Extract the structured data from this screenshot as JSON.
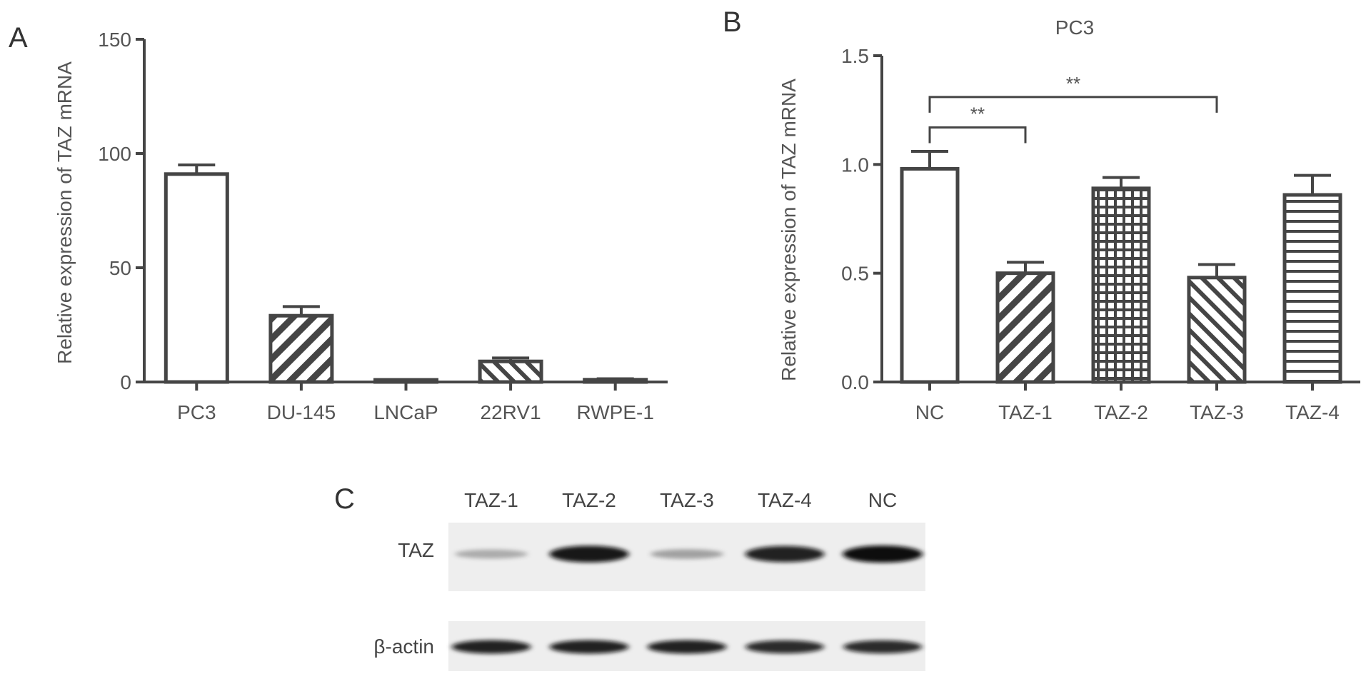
{
  "panels": {
    "a": "A",
    "b": "B",
    "c": "C"
  },
  "chart_data": [
    {
      "type": "bar",
      "panel": "A",
      "title": "",
      "xlabel": "",
      "ylabel": "Relative expression of TAZ mRNA",
      "ylim": [
        0,
        150
      ],
      "yticks": [
        0,
        50,
        100,
        150
      ],
      "ytick_labels": [
        "0",
        "50",
        "100",
        "150"
      ],
      "grid": false,
      "categories": [
        "PC3",
        "DU-145",
        "LNCaP",
        "22RV1",
        "RWPE-1"
      ],
      "values": [
        91,
        29,
        0.5,
        9,
        1
      ],
      "errors": [
        4,
        4,
        0.2,
        1.5,
        0.4
      ],
      "patterns": [
        "none",
        "diag-right",
        "diag-right",
        "diag-left",
        "diag-left"
      ]
    },
    {
      "type": "bar",
      "panel": "B",
      "title": "PC3",
      "xlabel": "",
      "ylabel": "Relative expression of TAZ mRNA",
      "ylim": [
        0,
        1.5
      ],
      "yticks": [
        0,
        0.5,
        1.0,
        1.5
      ],
      "ytick_labels": [
        "0.0",
        "0.5",
        "1.0",
        "1.5"
      ],
      "grid": false,
      "categories": [
        "NC",
        "TAZ-1",
        "TAZ-2",
        "TAZ-3",
        "TAZ-4"
      ],
      "values": [
        0.98,
        0.5,
        0.89,
        0.48,
        0.86
      ],
      "errors": [
        0.08,
        0.05,
        0.05,
        0.06,
        0.09
      ],
      "patterns": [
        "none",
        "diag-right",
        "grid",
        "diag-left",
        "horizontal"
      ],
      "annotations": [
        {
          "from": "NC",
          "to": "TAZ-1",
          "label": "**",
          "y": 1.17
        },
        {
          "from": "NC",
          "to": "TAZ-3",
          "label": "**",
          "y": 1.31
        }
      ]
    }
  ],
  "western_blot": {
    "lanes": [
      "TAZ-1",
      "TAZ-2",
      "TAZ-3",
      "TAZ-4",
      "NC"
    ],
    "rows": [
      {
        "label": "TAZ",
        "intensities": [
          0.15,
          0.95,
          0.2,
          0.9,
          1.0
        ]
      },
      {
        "label": "β-actin",
        "intensities": [
          0.9,
          0.9,
          0.9,
          0.85,
          0.85
        ]
      }
    ]
  }
}
